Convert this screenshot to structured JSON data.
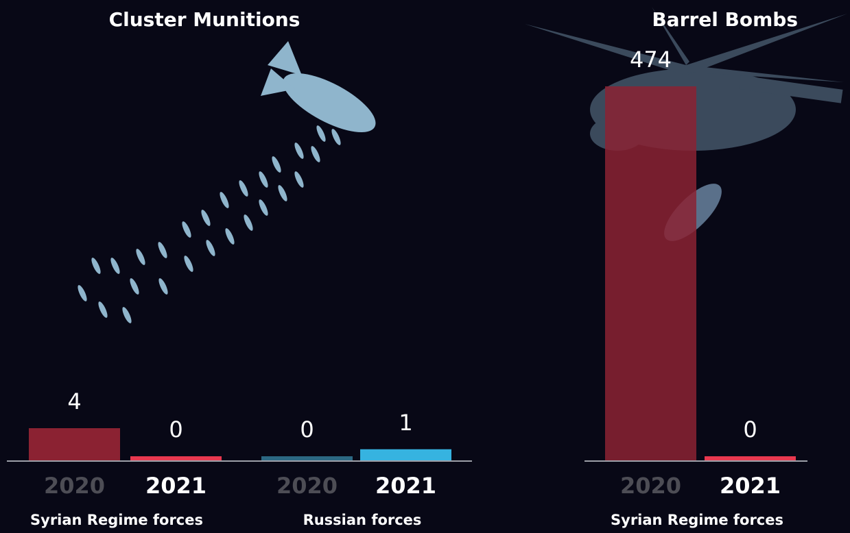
{
  "chart_data": [
    {
      "type": "bar",
      "title": "Cluster Munitions",
      "groups": [
        {
          "label": "Syrian Regime forces",
          "categories": [
            "2020",
            "2021"
          ],
          "values": [
            4,
            0
          ],
          "colors": [
            "#8b2232",
            "#e8384f"
          ]
        },
        {
          "label": "Russian forces",
          "categories": [
            "2020",
            "2021"
          ],
          "values": [
            0,
            1
          ],
          "colors": [
            "#2c6883",
            "#36b3e0"
          ]
        }
      ]
    },
    {
      "type": "bar",
      "title": "Barrel Bombs",
      "groups": [
        {
          "label": "Syrian Regime forces",
          "categories": [
            "2020",
            "2021"
          ],
          "values": [
            474,
            0
          ],
          "colors": [
            "#8b2232",
            "#e8384f"
          ]
        }
      ]
    }
  ]
}
